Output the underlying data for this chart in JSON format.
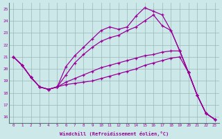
{
  "xlabel": "Windchill (Refroidissement éolien,°C)",
  "background_color": "#cce8e8",
  "line_color": "#990099",
  "ylim": [
    15.5,
    25.5
  ],
  "xlim": [
    -0.5,
    23.5
  ],
  "yticks": [
    16,
    17,
    18,
    19,
    20,
    21,
    22,
    23,
    24,
    25
  ],
  "xticks": [
    0,
    1,
    2,
    3,
    4,
    5,
    6,
    7,
    8,
    9,
    10,
    11,
    12,
    13,
    14,
    15,
    16,
    17,
    18,
    19,
    20,
    21,
    22,
    23
  ],
  "lines": [
    {
      "x": [
        0,
        1,
        2,
        3,
        4,
        5,
        6,
        7,
        8,
        9,
        10,
        11,
        12,
        13,
        14,
        15,
        16,
        17,
        18,
        19,
        20,
        21,
        22,
        23
      ],
      "y": [
        21.0,
        20.3,
        19.3,
        18.5,
        18.3,
        18.5,
        18.7,
        18.8,
        18.9,
        19.0,
        19.2,
        19.4,
        19.6,
        19.8,
        20.0,
        20.3,
        20.5,
        20.7,
        20.9,
        21.0,
        19.7,
        17.8,
        16.3,
        15.8
      ]
    },
    {
      "x": [
        0,
        1,
        2,
        3,
        4,
        5,
        6,
        7,
        8,
        9,
        10,
        11,
        12,
        13,
        14,
        15,
        16,
        17,
        18,
        19,
        20,
        21,
        22,
        23
      ],
      "y": [
        21.0,
        20.3,
        19.3,
        18.5,
        18.3,
        18.5,
        18.9,
        19.2,
        19.5,
        19.8,
        20.1,
        20.3,
        20.5,
        20.7,
        20.9,
        21.1,
        21.2,
        21.4,
        21.5,
        21.5,
        19.7,
        17.8,
        16.3,
        15.8
      ]
    },
    {
      "x": [
        0,
        1,
        2,
        3,
        4,
        5,
        6,
        7,
        8,
        9,
        10,
        11,
        12,
        13,
        14,
        15,
        16,
        17,
        18,
        19,
        20,
        21,
        22,
        23
      ],
      "y": [
        21.0,
        20.3,
        19.3,
        18.5,
        18.3,
        18.5,
        19.5,
        20.5,
        21.2,
        21.8,
        22.3,
        22.6,
        22.8,
        23.2,
        23.5,
        24.0,
        24.5,
        23.6,
        23.2,
        21.5,
        19.7,
        17.8,
        16.3,
        15.8
      ]
    },
    {
      "x": [
        0,
        1,
        2,
        3,
        4,
        5,
        6,
        7,
        8,
        9,
        10,
        11,
        12,
        13,
        14,
        15,
        16,
        17,
        18,
        19,
        20,
        21,
        22,
        23
      ],
      "y": [
        21.0,
        20.3,
        19.3,
        18.5,
        18.3,
        18.5,
        20.2,
        21.1,
        21.8,
        22.5,
        23.2,
        23.5,
        23.3,
        23.5,
        24.4,
        25.1,
        24.8,
        24.5,
        23.2,
        21.5,
        19.7,
        17.8,
        16.3,
        15.8
      ]
    }
  ]
}
